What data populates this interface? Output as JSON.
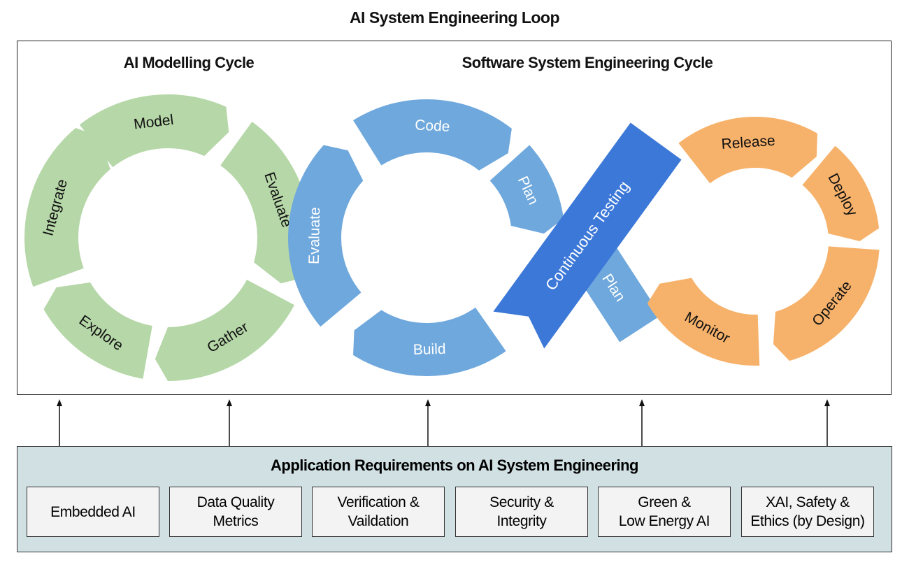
{
  "title": "AI System Engineering Loop",
  "ai_cycle": {
    "heading": "AI Modelling Cycle",
    "color": "#b6d7a8",
    "segments": [
      "Model",
      "Evaluate",
      "Gather",
      "Explore",
      "Integrate"
    ]
  },
  "sw_cycle": {
    "heading": "Software System Engineering Cycle",
    "color": "#6fa8dc",
    "accent": "#3c78d8",
    "dev_segments": [
      "Code",
      "Plan",
      "Build",
      "Evaluate"
    ],
    "plan_lower": "Plan",
    "testing": "Continuous Testing",
    "ops_color": "#f6b26b",
    "ops_segments": [
      "Release",
      "Deploy",
      "Operate",
      "Monitor"
    ]
  },
  "requirements": {
    "heading": "Application Requirements on AI System Engineering",
    "background": "#d0e0e3",
    "items": [
      "Embedded AI",
      "Data Quality\nMetrics",
      "Verification &\nVaildation",
      "Security &\nIntegrity",
      "Green &\nLow Energy AI",
      "XAI, Safety &\nEthics (by Design)"
    ]
  }
}
